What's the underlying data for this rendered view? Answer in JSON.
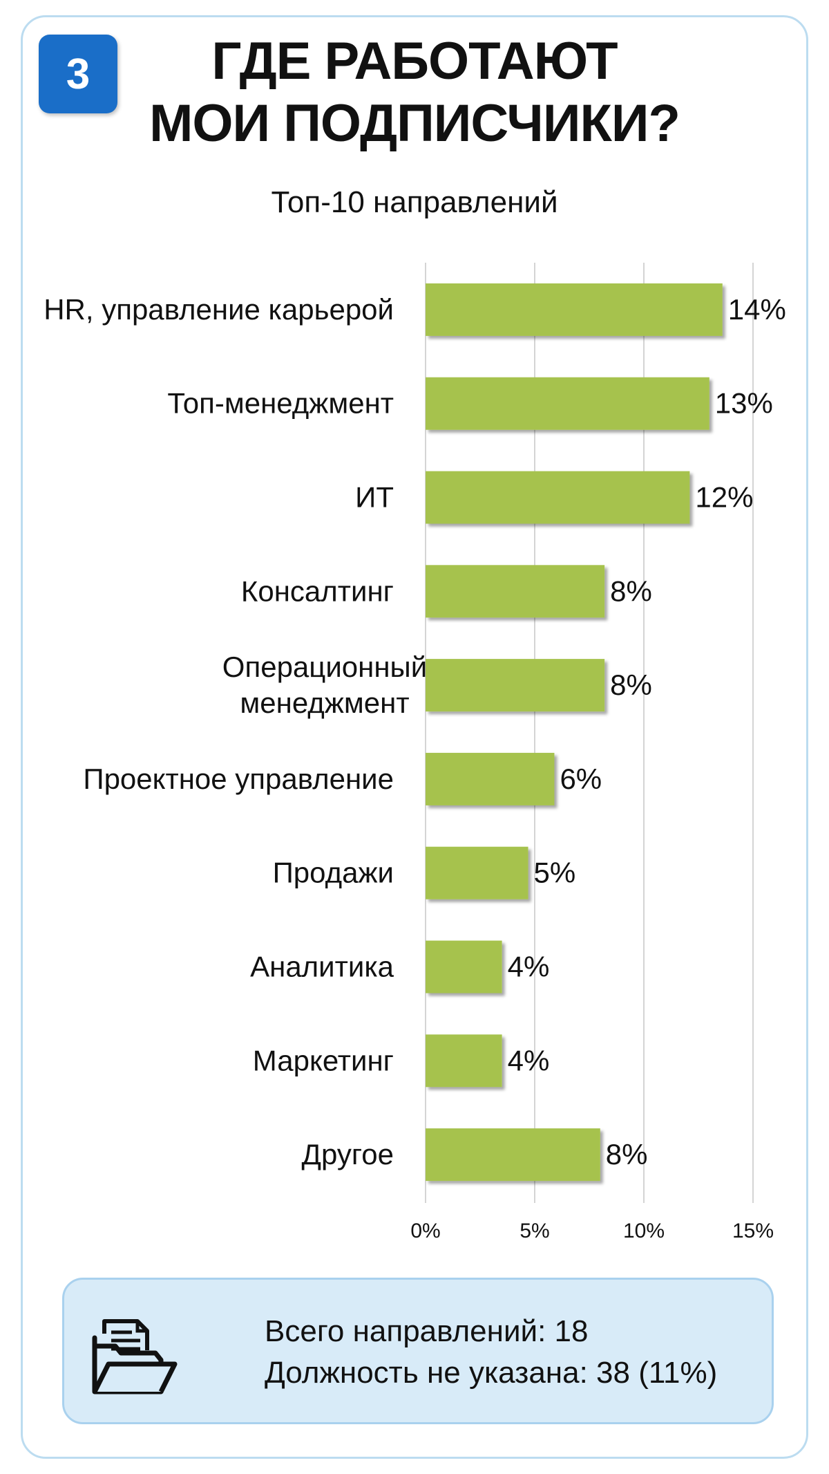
{
  "badge": "3",
  "title_line1": "ГДЕ РАБОТАЮТ",
  "title_line2": "МОИ ПОДПИСЧИКИ?",
  "colors": {
    "bar": "#a6c24e",
    "badge": "#1a6ec8",
    "footer_bg": "#d8ebf8"
  },
  "chart_data": {
    "type": "bar",
    "orientation": "horizontal",
    "title": "Топ-10 направлений",
    "categories": [
      "HR, управление карьерой",
      "Топ-менеджмент",
      "ИТ",
      "Консалтинг",
      "Операционный менеджмент",
      "Проектное управление",
      "Продажи",
      "Аналитика",
      "Маркетинг",
      "Другое"
    ],
    "category_lines": [
      [
        "HR, управление карьерой"
      ],
      [
        "Топ-менеджмент"
      ],
      [
        "ИТ"
      ],
      [
        "Консалтинг"
      ],
      [
        "Операционный",
        "менеджмент"
      ],
      [
        "Проектное управление"
      ],
      [
        "Продажи"
      ],
      [
        "Аналитика"
      ],
      [
        "Маркетинг"
      ],
      [
        "Другое"
      ]
    ],
    "values": [
      13.6,
      13.0,
      12.1,
      8.2,
      8.2,
      5.9,
      4.7,
      3.5,
      3.5,
      8.0
    ],
    "value_labels": [
      "14%",
      "13%",
      "12%",
      "8%",
      "8%",
      "6%",
      "5%",
      "4%",
      "4%",
      "8%"
    ],
    "xlim": [
      0,
      15
    ],
    "x_ticks": [
      0,
      5,
      10,
      15
    ],
    "x_tick_labels": [
      "0%",
      "5%",
      "10%",
      "15%"
    ],
    "grid": true
  },
  "footer": {
    "icon": "folder-document-icon",
    "line1": "Всего направлений: 18",
    "line2": "Должность не указана: 38 (11%)"
  }
}
